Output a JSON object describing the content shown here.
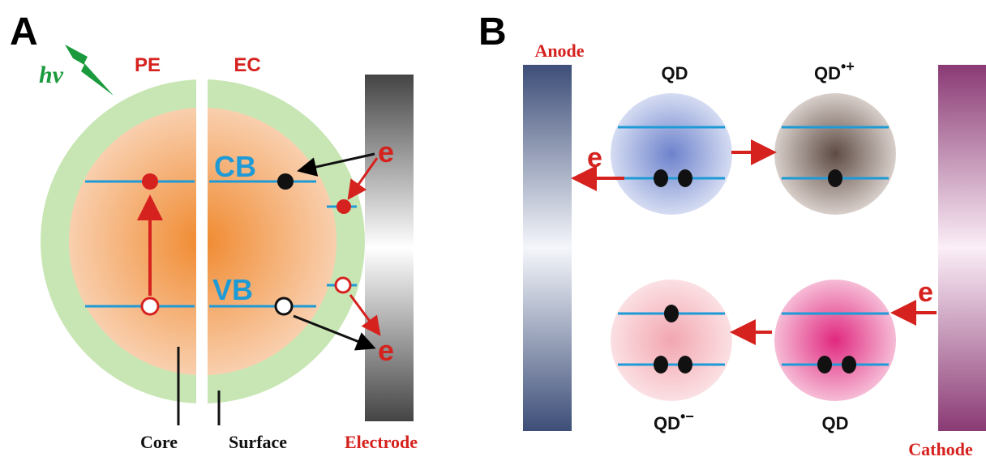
{
  "panel_a": {
    "label": "A",
    "light": "hv",
    "left_half": "PE",
    "right_half": "EC",
    "conduction_band": "CB",
    "valence_band": "VB",
    "electron_top": "e",
    "electron_bottom": "e",
    "core_label": "Core",
    "surface_label": "Surface",
    "electrode_label": "Electrode"
  },
  "panel_b": {
    "label": "B",
    "anode": "Anode",
    "cathode": "Cathode",
    "electron_anode": "e",
    "electron_cathode": "e",
    "qd_top_left": "QD",
    "qd_top_right": {
      "base": "QD",
      "superscript": "•+"
    },
    "qd_bottom_left": {
      "base": "QD",
      "superscript": "•−"
    },
    "qd_bottom_right": "QD"
  }
}
